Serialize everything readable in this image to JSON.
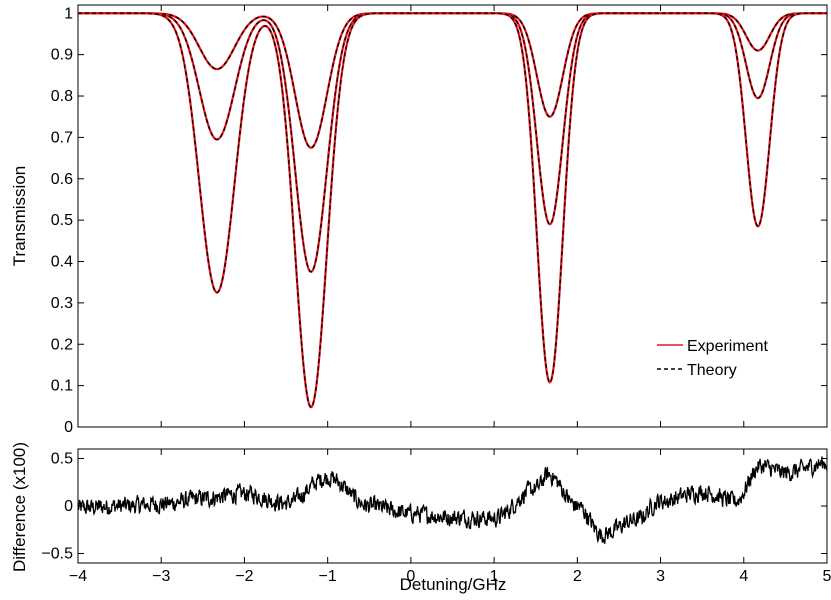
{
  "chart_data": [
    {
      "type": "line",
      "panel": "main",
      "xlabel": "",
      "ylabel": "Transmission",
      "xlim": [
        -4,
        5
      ],
      "ylim": [
        0,
        1.02
      ],
      "xticks": [
        -4,
        -3,
        -2,
        -1,
        0,
        1,
        2,
        3,
        4,
        5
      ],
      "yticks": [
        0,
        0.1,
        0.2,
        0.3,
        0.4,
        0.5,
        0.6,
        0.7,
        0.8,
        0.9,
        1
      ],
      "ytick_labels": [
        "0",
        "0.1",
        "0.2",
        "0.3",
        "0.4",
        "0.5",
        "0.6",
        "0.7",
        "0.8",
        "0.9",
        "1"
      ],
      "grid": false,
      "legend_position": "bottom-right",
      "legend": [
        {
          "name": "Experiment",
          "color": "#e8141b",
          "style": "solid"
        },
        {
          "name": "Theory",
          "color": "#000000",
          "style": "dashed"
        }
      ],
      "line_model": {
        "description_of_dips": "each series: transmission minima at listed detunings",
        "dip_centers": [
          -2.33,
          -1.2,
          1.67,
          4.17
        ],
        "dip_widths": [
          0.3,
          0.27,
          0.22,
          0.2
        ]
      },
      "series": [
        {
          "dip_minima": [
            0.865,
            0.675,
            0.75,
            0.91
          ]
        },
        {
          "dip_minima": [
            0.695,
            0.375,
            0.49,
            0.795
          ]
        },
        {
          "dip_minima": [
            0.325,
            0.048,
            0.108,
            0.485
          ]
        }
      ],
      "peaks_between_first_dips": {
        "x": -1.8,
        "y": [
          0.975,
          0.935,
          0.805
        ]
      }
    },
    {
      "type": "line",
      "panel": "residual",
      "xlabel": "Detuning/GHz",
      "ylabel": "Difference (x100)",
      "xlim": [
        -4,
        5
      ],
      "ylim": [
        -0.6,
        0.6
      ],
      "xticks": [
        -4,
        -3,
        -2,
        -1,
        0,
        1,
        2,
        3,
        4,
        5
      ],
      "xtick_labels": [
        "−4",
        "−3",
        "−2",
        "−1",
        "0",
        "1",
        "2",
        "3",
        "4",
        "5"
      ],
      "yticks": [
        -0.5,
        0,
        0.5
      ],
      "ytick_labels": [
        "−0.5",
        "0",
        "0.5"
      ],
      "color": "#000000",
      "baseline_points": {
        "x": [
          -4,
          -3.5,
          -3,
          -2.5,
          -2,
          -1.5,
          -1,
          -0.5,
          0,
          0.5,
          1,
          1.5,
          1.65,
          2,
          2.3,
          2.7,
          3,
          3.5,
          3.9,
          4.2,
          4.5,
          5
        ],
        "y": [
          -0.02,
          0.0,
          0.02,
          0.08,
          0.13,
          0.03,
          0.3,
          0.0,
          -0.08,
          -0.12,
          -0.13,
          0.18,
          0.33,
          0.0,
          -0.3,
          -0.15,
          0.05,
          0.15,
          0.05,
          0.42,
          0.35,
          0.45
        ]
      }
    }
  ]
}
